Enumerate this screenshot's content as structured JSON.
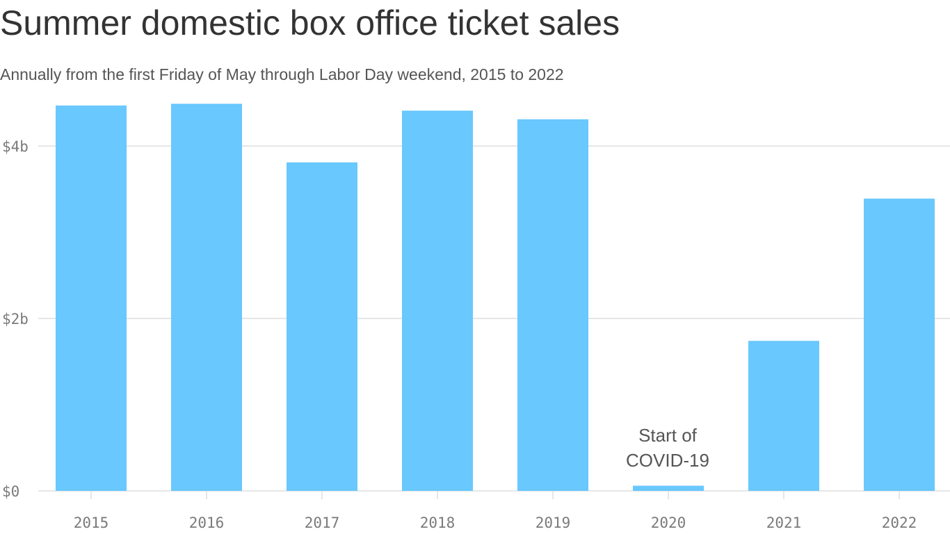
{
  "chart_data": {
    "type": "bar",
    "title": "Summer domestic box office ticket sales",
    "subtitle": "Annually from the first Friday of May through Labor Day weekend, 2015 to 2022",
    "categories": [
      "2015",
      "2016",
      "2017",
      "2018",
      "2019",
      "2020",
      "2021",
      "2022"
    ],
    "values": [
      4.47,
      4.49,
      3.81,
      4.41,
      4.31,
      0.06,
      1.74,
      3.39
    ],
    "color": "#69c8fd",
    "ylim": [
      0,
      4.6
    ],
    "yticks": [
      {
        "value": 0,
        "label": "$0"
      },
      {
        "value": 2,
        "label": "$2b"
      },
      {
        "value": 4,
        "label": "$4b"
      }
    ],
    "grid": true,
    "annotation": [
      "Start of",
      "COVID-19"
    ]
  }
}
